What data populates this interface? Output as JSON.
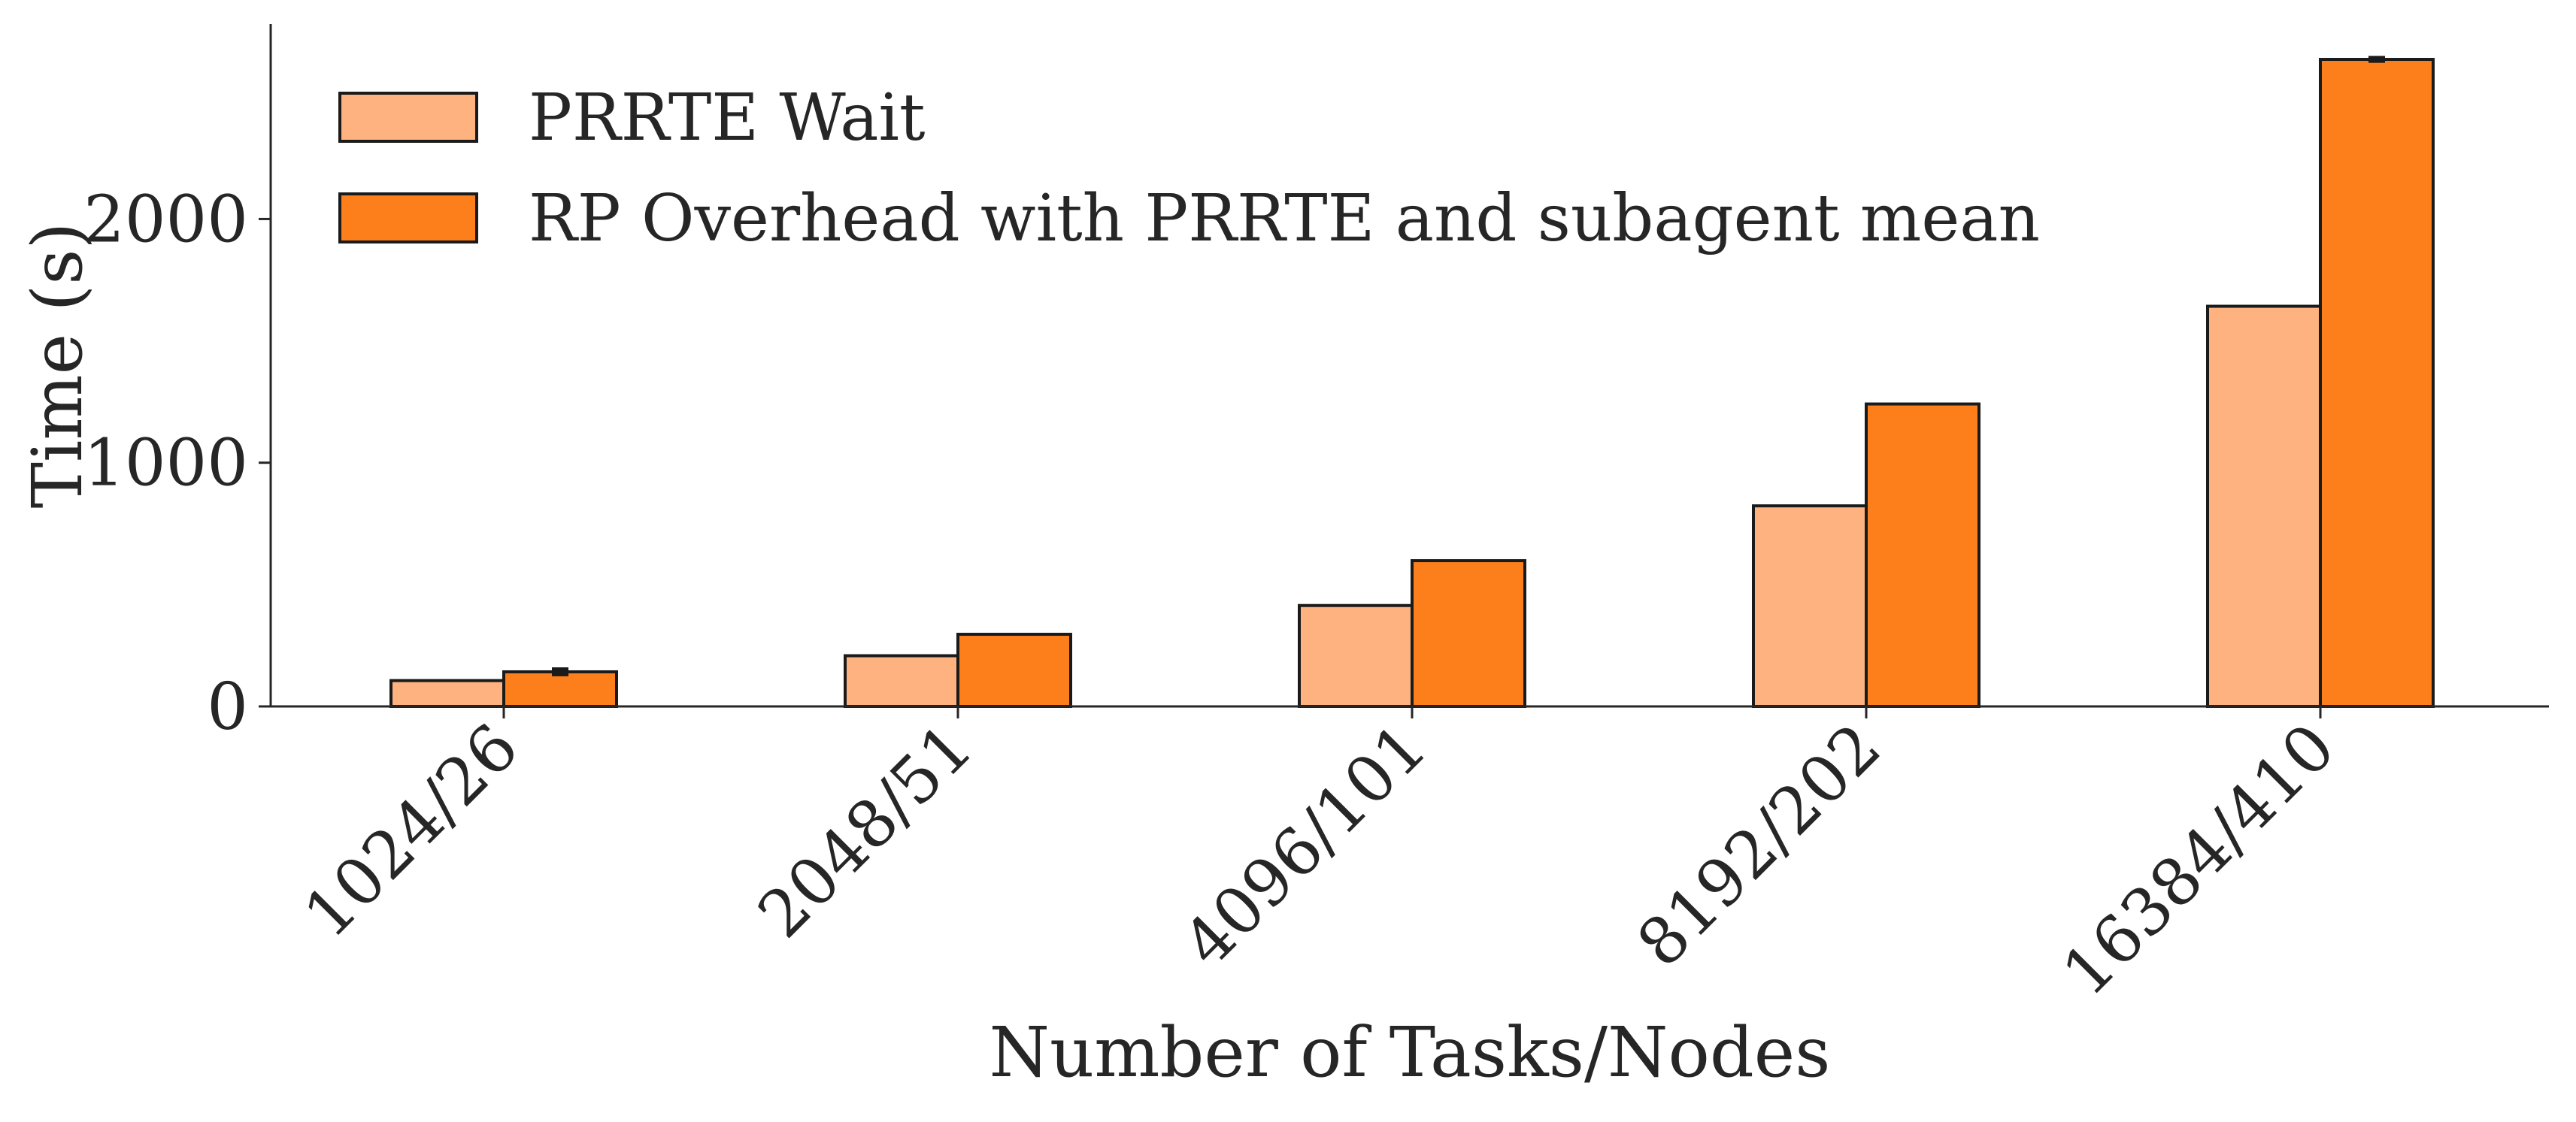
{
  "chart_data": {
    "type": "bar",
    "categories": [
      "1024/26",
      "2048/51",
      "4096/101",
      "8192/202",
      "16384/410"
    ],
    "series": [
      {
        "name": "PRRTE Wait",
        "color": "#FDB27F",
        "values": [
          106,
          208,
          414,
          823,
          1642
        ],
        "errors": [
          0,
          0,
          0,
          0,
          0
        ]
      },
      {
        "name": "RP Overhead with PRRTE and subagent mean",
        "color": "#FD7F1C",
        "values": [
          142,
          296,
          598,
          1241,
          2655
        ],
        "errors": [
          12,
          0,
          0,
          0,
          8
        ]
      }
    ],
    "xlabel": "Number of Tasks/Nodes",
    "ylabel": "Time (s)",
    "ylim": [
      0,
      2800
    ],
    "yticks": [
      0,
      1000,
      2000
    ],
    "grid": false,
    "legend": "top-left"
  }
}
